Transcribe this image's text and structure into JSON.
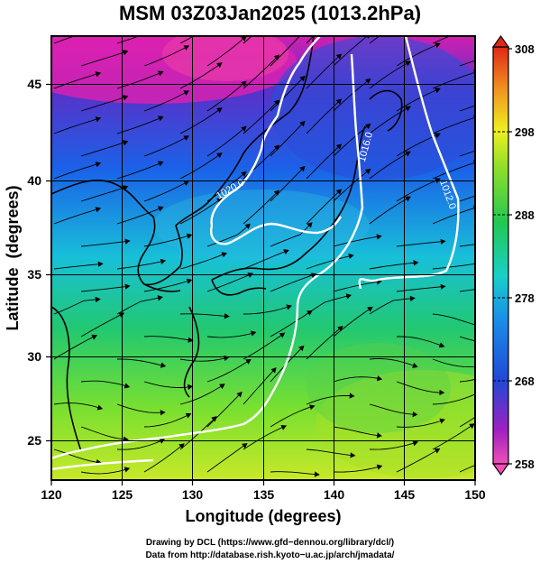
{
  "title": "MSM 03Z03Jan2025 (1013.2hPa)",
  "x_axis": {
    "label": "Longitude (degrees)",
    "ticks": [
      "120",
      "125",
      "130",
      "135",
      "140",
      "145",
      "150"
    ]
  },
  "y_axis": {
    "label": "Latitude  (degrees)",
    "ticks": [
      "25",
      "30",
      "35",
      "40",
      "45"
    ]
  },
  "colorbar": {
    "ticks": [
      "258",
      "268",
      "278",
      "288",
      "298",
      "308"
    ],
    "colors": [
      "#e01ea0",
      "#5020c0",
      "#1a62e8",
      "#18c0d8",
      "#22c870",
      "#7ae030",
      "#f0f020",
      "#f08a20",
      "#e02818"
    ]
  },
  "contours": [
    {
      "label": "1020.0"
    },
    {
      "label": "1016.0"
    },
    {
      "label": "1012.0"
    }
  ],
  "credits": [
    "Drawing by DCL (https://www.gfd−dennou.org/library/dcl/)",
    "Data from http://database.rish.kyoto−u.ac.jp/arch/jmadata/"
  ],
  "chart_data": {
    "type": "heatmap",
    "title": "MSM 03Z03Jan2025 (1013.2hPa)",
    "xlabel": "Longitude (degrees)",
    "ylabel": "Latitude  (degrees)",
    "xlim": [
      120,
      150
    ],
    "ylim": [
      22.4,
      47.6
    ],
    "colorbar_range": [
      258,
      308
    ],
    "contour_levels": [
      1012.0,
      1016.0,
      1020.0
    ],
    "grid": true
  }
}
